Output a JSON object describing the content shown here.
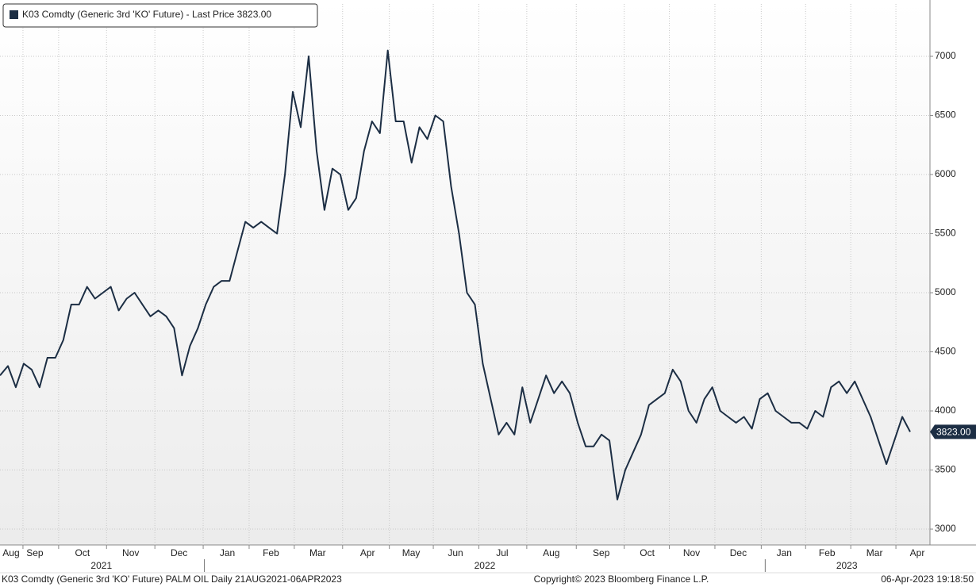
{
  "chart_data": {
    "type": "line",
    "series": [
      {
        "name": "K03 Comdty (Generic 3rd 'KO' Future) - Last Price 3823.00",
        "color": "#1c2e44",
        "values": [
          4300,
          4380,
          4200,
          4400,
          4350,
          4200,
          4450,
          4450,
          4600,
          4900,
          4900,
          5050,
          4950,
          5000,
          5050,
          4850,
          4950,
          5000,
          4900,
          4800,
          4850,
          4800,
          4700,
          4300,
          4550,
          4700,
          4900,
          5050,
          5100,
          5100,
          5350,
          5600,
          5550,
          5600,
          5550,
          5500,
          6000,
          6700,
          6400,
          7000,
          6200,
          5700,
          6050,
          6000,
          5700,
          5800,
          6200,
          6450,
          6350,
          7050,
          6450,
          6450,
          6100,
          6400,
          6300,
          6500,
          6450,
          5900,
          5500,
          5000,
          4900,
          4400,
          4100,
          3800,
          3900,
          3800,
          4200,
          3900,
          4100,
          4300,
          4150,
          4250,
          4150,
          3900,
          3700,
          3700,
          3800,
          3750,
          3250,
          3500,
          3650,
          3800,
          4050,
          4100,
          4150,
          4350,
          4250,
          4000,
          3900,
          4100,
          4200,
          4000,
          3950,
          3900,
          3950,
          3850,
          4100,
          4150,
          4000,
          3950,
          3900,
          3900,
          3850,
          4000,
          3950,
          4200,
          4250,
          4150,
          4250,
          4100,
          3950,
          3750,
          3550,
          3750,
          3950,
          3823
        ]
      }
    ],
    "last_value_label": "3823.00",
    "ylim": [
      2866,
      7443
    ],
    "yticks": [
      3000,
      3500,
      4000,
      4500,
      5000,
      5500,
      6000,
      6500,
      7000
    ],
    "xlim": [
      0,
      117.4
    ],
    "xticks": [
      {
        "value": 1.4,
        "label": "Aug"
      },
      {
        "value": 4.4,
        "label": "Sep"
      },
      {
        "value": 10.4,
        "label": "Oct"
      },
      {
        "value": 16.5,
        "label": "Nov"
      },
      {
        "value": 22.6,
        "label": "Dec"
      },
      {
        "value": 28.7,
        "label": "Jan"
      },
      {
        "value": 34.2,
        "label": "Feb"
      },
      {
        "value": 40.1,
        "label": "Mar"
      },
      {
        "value": 46.4,
        "label": "Apr"
      },
      {
        "value": 51.9,
        "label": "May"
      },
      {
        "value": 57.5,
        "label": "Jun"
      },
      {
        "value": 63.4,
        "label": "Jul"
      },
      {
        "value": 69.6,
        "label": "Aug"
      },
      {
        "value": 75.9,
        "label": "Sep"
      },
      {
        "value": 81.7,
        "label": "Oct"
      },
      {
        "value": 87.3,
        "label": "Nov"
      },
      {
        "value": 93.2,
        "label": "Dec"
      },
      {
        "value": 99,
        "label": "Jan"
      },
      {
        "value": 104.4,
        "label": "Feb"
      },
      {
        "value": 110.4,
        "label": "Mar"
      },
      {
        "value": 115.8,
        "label": "Apr"
      }
    ],
    "year_ticks": [
      {
        "value": 12.8,
        "label": "2021"
      },
      {
        "value": 61.2,
        "label": "2022"
      },
      {
        "value": 106.9,
        "label": "2023"
      }
    ],
    "year_separators": [
      25.8,
      96.6
    ],
    "grid": true,
    "footer": {
      "description": "K03 Comdty (Generic 3rd 'KO' Future) PALM OIL  Daily 21AUG2021-06APR2023",
      "copyright": "Copyright© 2023 Bloomberg Finance L.P.",
      "timestamp": "06-Apr-2023 19:18:50"
    }
  }
}
